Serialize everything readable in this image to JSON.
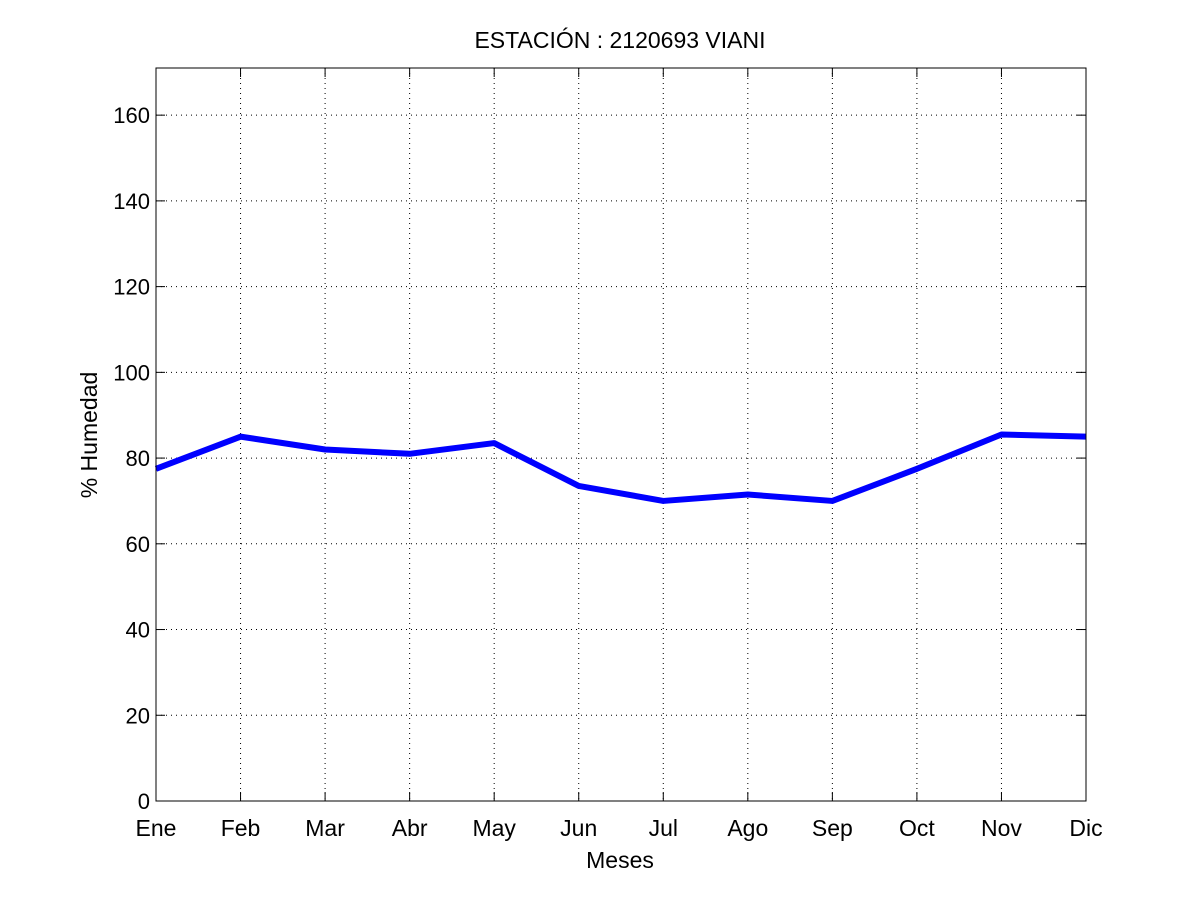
{
  "chart_data": {
    "type": "line",
    "title": "ESTACIÓN :  2120693  VIANI",
    "xlabel": "Meses",
    "ylabel": "% Humedad",
    "categories": [
      "Ene",
      "Feb",
      "Mar",
      "Abr",
      "May",
      "Jun",
      "Jul",
      "Ago",
      "Sep",
      "Oct",
      "Nov",
      "Dic"
    ],
    "series": [
      {
        "values": [
          77.5,
          85,
          82,
          81,
          83.5,
          73.5,
          70,
          71.5,
          70,
          77.5,
          85.5,
          85
        ],
        "color": "#0000ff"
      }
    ],
    "ylim": [
      0,
      171
    ],
    "yticks": [
      0,
      20,
      40,
      60,
      80,
      100,
      120,
      140,
      160
    ],
    "grid": true,
    "grid_style": "dotted",
    "legend": "none"
  }
}
